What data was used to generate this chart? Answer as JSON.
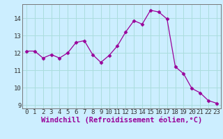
{
  "x": [
    0,
    1,
    2,
    3,
    4,
    5,
    6,
    7,
    8,
    9,
    10,
    11,
    12,
    13,
    14,
    15,
    16,
    17,
    18,
    19,
    20,
    21,
    22,
    23
  ],
  "y": [
    12.1,
    12.1,
    11.7,
    11.9,
    11.7,
    12.0,
    12.6,
    12.7,
    11.9,
    11.45,
    11.85,
    12.4,
    13.2,
    13.85,
    13.65,
    14.45,
    14.35,
    13.95,
    11.2,
    10.8,
    9.95,
    9.7,
    9.25,
    9.1
  ],
  "line_color": "#990099",
  "marker": "D",
  "marker_size": 2.5,
  "bg_color": "#cceeff",
  "grid_color": "#aadddd",
  "xlabel": "Windchill (Refroidissement éolien,°C)",
  "xlim": [
    -0.5,
    23.5
  ],
  "ylim": [
    8.8,
    14.8
  ],
  "yticks": [
    9,
    10,
    11,
    12,
    13,
    14
  ],
  "xticks": [
    0,
    1,
    2,
    3,
    4,
    5,
    6,
    7,
    8,
    9,
    10,
    11,
    12,
    13,
    14,
    15,
    16,
    17,
    18,
    19,
    20,
    21,
    22,
    23
  ],
  "xlabel_fontsize": 7.5,
  "tick_fontsize": 6.5
}
